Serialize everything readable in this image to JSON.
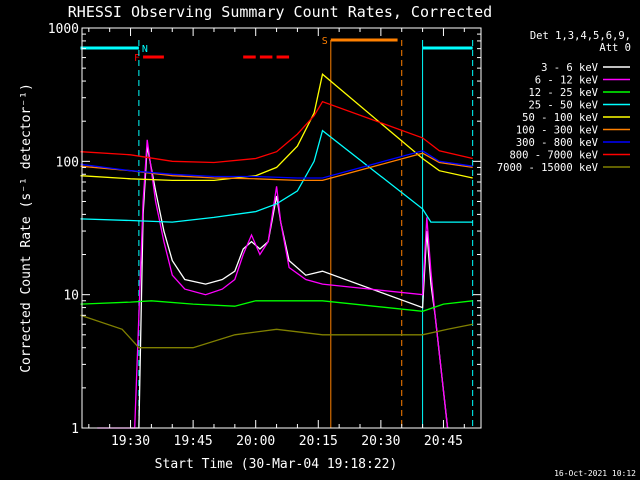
{
  "chart_data": {
    "type": "line",
    "title": "RHESSI Observing Summary Count Rates, Corrected",
    "xlabel": "Start Time (30-Mar-04 19:18:22)",
    "ylabel": "Corrected Count Rate (s⁻¹ detector⁻¹)",
    "x_unit": "minutes",
    "xlim": [
      "19:18:22",
      "20:54:00"
    ],
    "xticks": [
      "19:30",
      "19:45",
      "20:00",
      "20:15",
      "20:30",
      "20:45"
    ],
    "yscale": "log",
    "ylim": [
      1,
      1000
    ],
    "yticks": [
      "1",
      "10",
      "100",
      "1000"
    ],
    "legend_title": [
      "Det 1,3,4,5,6,9,",
      "Att 0"
    ],
    "legend_position": "right",
    "timestamp": "16-Oct-2021 10:12",
    "flags": [
      {
        "label": "N",
        "color": "#00ffff",
        "segments": [
          [
            "19:18",
            "19:32"
          ],
          [
            "20:40",
            "20:52"
          ]
        ]
      },
      {
        "label": "F",
        "color": "#ff0000",
        "segments": [
          [
            "19:33",
            "19:38"
          ],
          [
            "19:57",
            "20:00"
          ],
          [
            "20:01",
            "20:04"
          ],
          [
            "20:05",
            "20:08"
          ]
        ]
      },
      {
        "label": "S",
        "color": "#ff8000",
        "segments": [
          [
            "20:18",
            "20:34"
          ]
        ]
      }
    ],
    "vlines": [
      {
        "t": "19:32",
        "color": "#00ffff",
        "style": "dashed"
      },
      {
        "t": "20:18",
        "color": "#ff8000",
        "style": "solid"
      },
      {
        "t": "20:35",
        "color": "#ff8000",
        "style": "dashed"
      },
      {
        "t": "20:40",
        "color": "#00ffff",
        "style": "solid"
      },
      {
        "t": "20:52",
        "color": "#00ffff",
        "style": "dashed"
      }
    ],
    "series": [
      {
        "name": "3 - 6 keV",
        "color": "#ffffff",
        "points": [
          [
            "19:30",
            "1"
          ],
          [
            "19:32",
            "1"
          ],
          [
            "19:33",
            "40"
          ],
          [
            "19:34",
            "130"
          ],
          [
            "19:36",
            "60"
          ],
          [
            "19:38",
            "30"
          ],
          [
            "19:40",
            "18"
          ],
          [
            "19:43",
            "13"
          ],
          [
            "19:48",
            "12"
          ],
          [
            "19:52",
            "13"
          ],
          [
            "19:55",
            "15"
          ],
          [
            "19:57",
            "22"
          ],
          [
            "19:59",
            "25"
          ],
          [
            "20:01",
            "22"
          ],
          [
            "20:03",
            "25"
          ],
          [
            "20:05",
            "55"
          ],
          [
            "20:06",
            "35"
          ],
          [
            "20:08",
            "18"
          ],
          [
            "20:12",
            "14"
          ],
          [
            "20:16",
            "15"
          ],
          [
            "20:40",
            "8"
          ],
          [
            "20:41",
            "30"
          ],
          [
            "20:42",
            "12"
          ],
          [
            "20:43",
            "7"
          ],
          [
            "20:46",
            "1"
          ]
        ]
      },
      {
        "name": "6 - 12 keV",
        "color": "#ff00ff",
        "points": [
          [
            "19:22",
            "1"
          ],
          [
            "19:31",
            "1"
          ],
          [
            "19:33",
            "50"
          ],
          [
            "19:34",
            "145"
          ],
          [
            "19:36",
            "50"
          ],
          [
            "19:38",
            "25"
          ],
          [
            "19:40",
            "14"
          ],
          [
            "19:43",
            "11"
          ],
          [
            "19:48",
            "10"
          ],
          [
            "19:52",
            "11"
          ],
          [
            "19:55",
            "13"
          ],
          [
            "19:57",
            "20"
          ],
          [
            "19:59",
            "28"
          ],
          [
            "20:01",
            "20"
          ],
          [
            "20:03",
            "25"
          ],
          [
            "20:05",
            "65"
          ],
          [
            "20:06",
            "35"
          ],
          [
            "20:08",
            "16"
          ],
          [
            "20:12",
            "13"
          ],
          [
            "20:16",
            "12"
          ],
          [
            "20:40",
            "10"
          ],
          [
            "20:41",
            "38"
          ],
          [
            "20:42",
            "15"
          ],
          [
            "20:43",
            "7"
          ],
          [
            "20:46",
            "1"
          ]
        ]
      },
      {
        "name": "12 - 25 keV",
        "color": "#00ff00",
        "points": [
          [
            "19:18",
            "8.5"
          ],
          [
            "19:30",
            "8.8"
          ],
          [
            "19:35",
            "9"
          ],
          [
            "19:45",
            "8.5"
          ],
          [
            "19:55",
            "8.2"
          ],
          [
            "20:00",
            "9"
          ],
          [
            "20:05",
            "9"
          ],
          [
            "20:10",
            "9"
          ],
          [
            "20:16",
            "9"
          ],
          [
            "20:40",
            "7.5"
          ],
          [
            "20:45",
            "8.5"
          ],
          [
            "20:52",
            "9"
          ]
        ]
      },
      {
        "name": "25 - 50 keV",
        "color": "#00ffff",
        "points": [
          [
            "19:18",
            "37"
          ],
          [
            "19:30",
            "36"
          ],
          [
            "19:40",
            "35"
          ],
          [
            "19:50",
            "38"
          ],
          [
            "20:00",
            "42"
          ],
          [
            "20:05",
            "48"
          ],
          [
            "20:10",
            "60"
          ],
          [
            "20:14",
            "100"
          ],
          [
            "20:16",
            "170"
          ],
          [
            "20:40",
            "44"
          ],
          [
            "20:42",
            "35"
          ],
          [
            "20:52",
            "35"
          ]
        ]
      },
      {
        "name": "50 - 100 keV",
        "color": "#ffff00",
        "points": [
          [
            "19:18",
            "78"
          ],
          [
            "19:30",
            "74"
          ],
          [
            "19:40",
            "72"
          ],
          [
            "19:50",
            "72"
          ],
          [
            "20:00",
            "78"
          ],
          [
            "20:05",
            "90"
          ],
          [
            "20:10",
            "130"
          ],
          [
            "20:14",
            "230"
          ],
          [
            "20:16",
            "450"
          ],
          [
            "20:40",
            "105"
          ],
          [
            "20:44",
            "85"
          ],
          [
            "20:52",
            "75"
          ]
        ]
      },
      {
        "name": "100 - 300 keV",
        "color": "#ff8000",
        "points": [
          [
            "19:18",
            "92"
          ],
          [
            "19:30",
            "85"
          ],
          [
            "19:40",
            "78"
          ],
          [
            "19:50",
            "75"
          ],
          [
            "20:00",
            "74"
          ],
          [
            "20:10",
            "72"
          ],
          [
            "20:16",
            "72"
          ],
          [
            "20:40",
            "115"
          ],
          [
            "20:44",
            "98"
          ],
          [
            "20:52",
            "90"
          ]
        ]
      },
      {
        "name": "300 - 800 keV",
        "color": "#0000ff",
        "points": [
          [
            "19:18",
            "95"
          ],
          [
            "19:30",
            "85"
          ],
          [
            "19:40",
            "80"
          ],
          [
            "19:50",
            "77"
          ],
          [
            "20:00",
            "77"
          ],
          [
            "20:10",
            "75"
          ],
          [
            "20:16",
            "75"
          ],
          [
            "20:40",
            "120"
          ],
          [
            "20:44",
            "100"
          ],
          [
            "20:52",
            "92"
          ]
        ]
      },
      {
        "name": "800 - 7000 keV",
        "color": "#ff0000",
        "points": [
          [
            "19:18",
            "118"
          ],
          [
            "19:30",
            "112"
          ],
          [
            "19:40",
            "100"
          ],
          [
            "19:50",
            "98"
          ],
          [
            "20:00",
            "105"
          ],
          [
            "20:05",
            "118"
          ],
          [
            "20:10",
            "160"
          ],
          [
            "20:14",
            "220"
          ],
          [
            "20:16",
            "280"
          ],
          [
            "20:40",
            "150"
          ],
          [
            "20:44",
            "120"
          ],
          [
            "20:52",
            "105"
          ]
        ]
      },
      {
        "name": "7000 - 15000 keV",
        "color": "#808000",
        "points": [
          [
            "19:18",
            "7"
          ],
          [
            "19:28",
            "5.5"
          ],
          [
            "19:32",
            "4"
          ],
          [
            "19:45",
            "4"
          ],
          [
            "19:55",
            "5"
          ],
          [
            "20:05",
            "5.5"
          ],
          [
            "20:16",
            "5"
          ],
          [
            "20:40",
            "5"
          ],
          [
            "20:46",
            "5.5"
          ],
          [
            "20:52",
            "6"
          ]
        ]
      }
    ]
  }
}
